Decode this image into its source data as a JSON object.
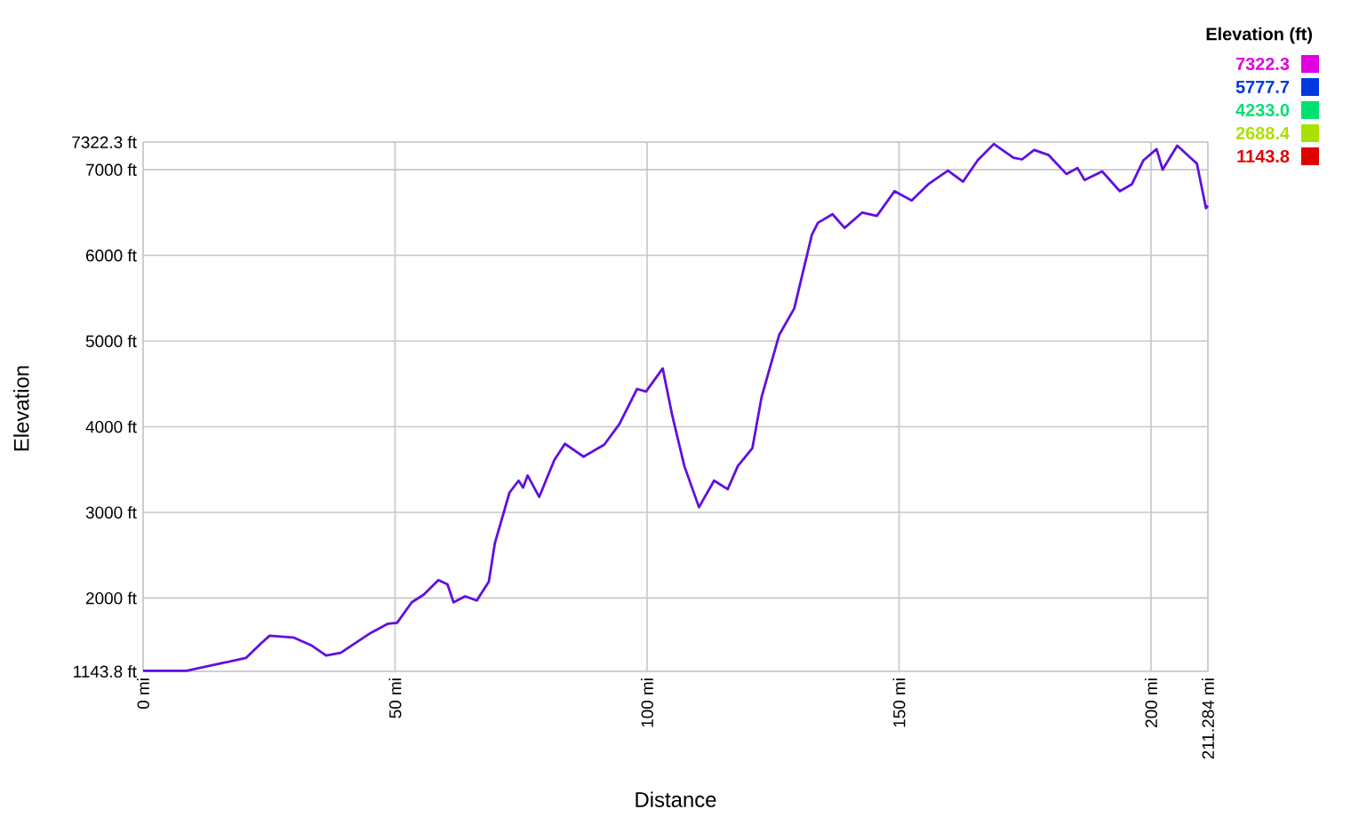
{
  "chart_data": {
    "type": "line",
    "xlabel": "Distance",
    "ylabel": "Elevation",
    "clabel": "Elevation (ft)",
    "xlim": [
      0,
      211.284
    ],
    "ylim": [
      1143.8,
      7322.3
    ],
    "xticks": [
      {
        "value": 0,
        "label": "0 mi"
      },
      {
        "value": 50,
        "label": "50 mi"
      },
      {
        "value": 100,
        "label": "100 mi"
      },
      {
        "value": 150,
        "label": "150 mi"
      },
      {
        "value": 200,
        "label": "200 mi"
      },
      {
        "value": 211.284,
        "label": "211.284 mi"
      }
    ],
    "yticks": [
      {
        "value": 1143.8,
        "label": "1143.8 ft"
      },
      {
        "value": 2000,
        "label": "2000 ft"
      },
      {
        "value": 3000,
        "label": "3000 ft"
      },
      {
        "value": 4000,
        "label": "4000 ft"
      },
      {
        "value": 5000,
        "label": "5000 ft"
      },
      {
        "value": 6000,
        "label": "6000 ft"
      },
      {
        "value": 7000,
        "label": "7000 ft"
      },
      {
        "value": 7322.3,
        "label": "7322.3 ft"
      }
    ],
    "clim": [
      1143.8,
      7322.3
    ],
    "cticks": [
      {
        "value": 7322.3,
        "label": "7322.3"
      },
      {
        "value": 5777.7,
        "label": "5777.7"
      },
      {
        "value": 4233.0,
        "label": "4233.0"
      },
      {
        "value": 2688.4,
        "label": "2688.4"
      },
      {
        "value": 1143.8,
        "label": "1143.8"
      }
    ],
    "grid": true,
    "marker": "none",
    "color": "#6010e0",
    "line_style": "solid",
    "x": [
      0,
      8.6,
      15.7,
      20.4,
      23.4,
      25.1,
      29.8,
      33.3,
      36.3,
      39.2,
      45.1,
      48.6,
      50.4,
      53.3,
      55.7,
      58.6,
      60.4,
      61.6,
      63.9,
      66.2,
      68.6,
      69.8,
      72.7,
      74.5,
      75.4,
      76.3,
      78.6,
      81.6,
      83.7,
      87.4,
      91.5,
      94.5,
      98.0,
      99.8,
      103.1,
      105.0,
      107.4,
      110.3,
      113.3,
      116.0,
      118.0,
      120.9,
      122.7,
      126.2,
      129.2,
      132.7,
      133.9,
      136.8,
      139.2,
      142.7,
      145.6,
      149.1,
      152.5,
      155.8,
      159.7,
      162.7,
      165.6,
      168.8,
      172.7,
      174.4,
      176.8,
      179.7,
      183.2,
      185.4,
      186.8,
      190.3,
      193.8,
      196.2,
      198.5,
      201.1,
      202.3,
      205.2,
      209.1,
      210.9,
      211.284
    ],
    "values": [
      1150,
      1150,
      1240,
      1300,
      1470,
      1560,
      1540,
      1450,
      1330,
      1360,
      1590,
      1700,
      1710,
      1950,
      2040,
      2210,
      2160,
      1950,
      2020,
      1970,
      2190,
      2640,
      3230,
      3370,
      3290,
      3430,
      3180,
      3610,
      3800,
      3650,
      3790,
      4030,
      4440,
      4410,
      4680,
      4130,
      3540,
      3060,
      3370,
      3270,
      3540,
      3750,
      4340,
      5070,
      5380,
      6240,
      6380,
      6480,
      6320,
      6500,
      6460,
      6750,
      6640,
      6830,
      6990,
      6860,
      7110,
      7300,
      7140,
      7120,
      7230,
      7170,
      6950,
      7020,
      6880,
      6980,
      6750,
      6830,
      7110,
      7240,
      7000,
      7280,
      7070,
      6550,
      6580
    ]
  }
}
